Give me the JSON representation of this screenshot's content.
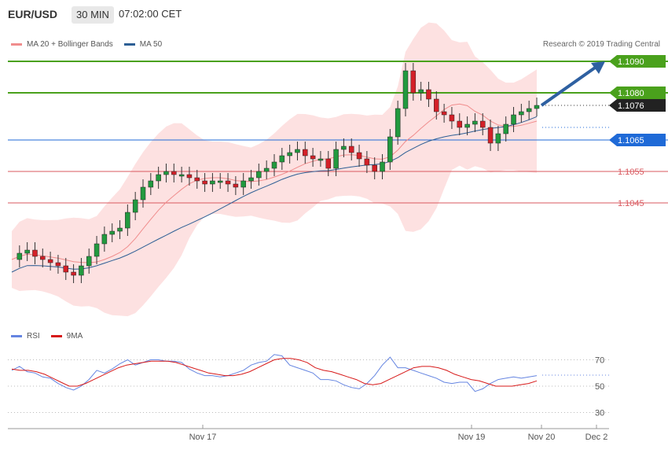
{
  "header": {
    "symbol": "EUR/USD",
    "timeframe": "30 MIN",
    "time": "07:02:00 CET"
  },
  "legend": {
    "bollinger_label": "MA 20 + Bollinger Bands",
    "ma50_label": "MA 50",
    "credit": "Research © 2019 Trading Central"
  },
  "rsi_legend": {
    "rsi_label": "RSI",
    "ma_label": "9MA"
  },
  "colors": {
    "up": "#229a3f",
    "down": "#d42028",
    "bollinger": "#f08d8d",
    "band_fill": "#fde1e1",
    "ma50": "#2d5f95",
    "resistance": "#4aa11c",
    "support": "#d9595f",
    "pivot": "#1f6ad7",
    "rsi": "#6585e1",
    "rsi_ma": "#d71919",
    "arrow": "#2e60a1"
  },
  "chart_data": {
    "type": "candlestick",
    "price_levels": [
      {
        "value": 1.109,
        "label": "1.1090",
        "role": "resistance"
      },
      {
        "value": 1.108,
        "label": "1.1080",
        "role": "resistance"
      },
      {
        "value": 1.1076,
        "label": "1.1076",
        "role": "last"
      },
      {
        "value": 1.1065,
        "label": "1.1065",
        "role": "pivot"
      },
      {
        "value": 1.1055,
        "label": "1.1055",
        "role": "support"
      },
      {
        "value": 1.1045,
        "label": "1.1045",
        "role": "support"
      }
    ],
    "xaxis_ticks": [
      "Nov 17",
      "Nov 19",
      "Nov 20",
      "Dec 2"
    ],
    "rsi_ticks": [
      70,
      50,
      30
    ],
    "close_path": [
      1.1027,
      1.1029,
      1.103,
      1.1028,
      1.1027,
      1.1026,
      1.1025,
      1.1023,
      1.1022,
      1.1025,
      1.1028,
      1.1032,
      1.1035,
      1.1036,
      1.1037,
      1.1042,
      1.1046,
      1.105,
      1.1052,
      1.1054,
      1.1055,
      1.1054,
      1.1054,
      1.1053,
      1.1052,
      1.1051,
      1.1052,
      1.1052,
      1.1051,
      1.105,
      1.1052,
      1.1053,
      1.1055,
      1.1056,
      1.1058,
      1.106,
      1.1061,
      1.1062,
      1.106,
      1.1059,
      1.1059,
      1.1056,
      1.1062,
      1.1063,
      1.1061,
      1.1059,
      1.1057,
      1.1055,
      1.1058,
      1.1066,
      1.1075,
      1.1087,
      1.108,
      1.1081,
      1.1078,
      1.1074,
      1.1073,
      1.1071,
      1.1069,
      1.107,
      1.1071,
      1.1069,
      1.1064,
      1.1067,
      1.107,
      1.1073,
      1.1074,
      1.1075,
      1.1076
    ],
    "rsi_path": [
      62,
      65,
      61,
      60,
      57,
      56,
      52,
      49,
      47,
      50,
      55,
      62,
      60,
      63,
      67,
      70,
      66,
      68,
      70,
      70,
      69,
      69,
      68,
      63,
      60,
      58,
      58,
      57,
      58,
      60,
      62,
      66,
      68,
      69,
      74,
      73,
      66,
      64,
      62,
      60,
      55,
      55,
      54,
      51,
      49,
      48,
      52,
      58,
      66,
      72,
      64,
      64,
      62,
      60,
      58,
      56,
      53,
      52,
      53,
      53,
      46,
      48,
      52,
      55,
      56,
      57,
      56,
      57,
      58
    ],
    "rsi_ma_path": [
      63,
      62,
      62,
      61,
      59,
      56,
      53,
      50,
      50,
      52,
      55,
      58,
      61,
      64,
      66,
      67,
      68,
      69,
      69,
      69,
      68,
      66,
      64,
      62,
      60,
      59,
      58,
      58,
      59,
      61,
      64,
      67,
      70,
      71,
      71,
      70,
      68,
      64,
      62,
      61,
      59,
      57,
      55,
      52,
      51,
      52,
      55,
      58,
      61,
      64,
      65,
      65,
      64,
      62,
      59,
      57,
      55,
      54,
      52,
      50,
      50,
      50,
      51,
      52,
      54
    ]
  }
}
